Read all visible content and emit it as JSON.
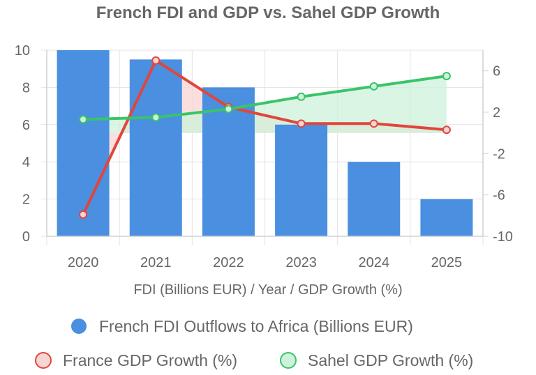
{
  "chart_data": {
    "type": "bar",
    "title": "French FDI and GDP vs. Sahel GDP Growth",
    "xlabel": "FDI (Billions EUR) / Year / GDP Growth (%)",
    "categories": [
      "2020",
      "2021",
      "2022",
      "2023",
      "2024",
      "2025"
    ],
    "y_left": {
      "min": 0,
      "max": 10,
      "ticks": [
        "0",
        "2",
        "4",
        "6",
        "8",
        "10"
      ]
    },
    "y_right": {
      "min": -10,
      "max": 8,
      "ticks": [
        "-10",
        "-6",
        "-2",
        "2",
        "6"
      ]
    },
    "grid": true,
    "legend_position": "bottom",
    "series": [
      {
        "name": "French FDI Outflows to Africa (Billions EUR)",
        "type": "bar",
        "axis": "left",
        "values": [
          10,
          9.5,
          8,
          6,
          4,
          2
        ],
        "color": "#4a8fe0"
      },
      {
        "name": "France GDP Growth (%)",
        "type": "line",
        "axis": "right",
        "fill": true,
        "values": [
          -7.9,
          7.0,
          2.5,
          0.9,
          0.9,
          0.3
        ],
        "color": "#e0463b",
        "fill_color": "#f8d4d4"
      },
      {
        "name": "Sahel GDP Growth (%)",
        "type": "line",
        "axis": "right",
        "fill": true,
        "values": [
          1.3,
          1.5,
          2.3,
          3.5,
          4.5,
          5.5
        ],
        "color": "#3ac46a",
        "fill_color": "#cdf1d9"
      }
    ]
  }
}
